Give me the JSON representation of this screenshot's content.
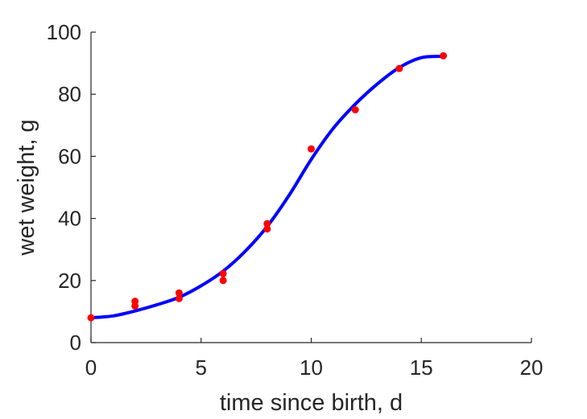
{
  "chart_data": {
    "type": "scatter",
    "title": "",
    "xlabel": "time since birth, d",
    "ylabel": "wet weight, g",
    "xlim": [
      0,
      20
    ],
    "ylim": [
      0,
      100
    ],
    "xticks": [
      0,
      5,
      10,
      15,
      20
    ],
    "yticks": [
      0,
      20,
      40,
      60,
      80,
      100
    ],
    "grid": false,
    "legend": "none",
    "series": [
      {
        "kind": "points",
        "color": "#ff0000",
        "points": [
          [
            0,
            8.0
          ],
          [
            2,
            13.3
          ],
          [
            2,
            11.8
          ],
          [
            4,
            16.0
          ],
          [
            4,
            14.2
          ],
          [
            6,
            22.2
          ],
          [
            6,
            20.0
          ],
          [
            8,
            38.3
          ],
          [
            8,
            36.6
          ],
          [
            10,
            62.4
          ],
          [
            12,
            75.0
          ],
          [
            14,
            88.3
          ],
          [
            16,
            92.4
          ]
        ]
      },
      {
        "kind": "fitted-curve",
        "color": "#0000ff",
        "x": [
          0,
          1,
          2,
          3,
          4,
          5,
          6,
          7,
          8,
          9,
          10,
          11,
          12,
          13,
          14,
          15,
          16
        ],
        "y": [
          8.0,
          8.6,
          10.2,
          12.2,
          14.6,
          18.3,
          23.0,
          29.4,
          37.4,
          47.5,
          59.0,
          69.0,
          76.8,
          83.3,
          88.6,
          91.8,
          92.2
        ]
      }
    ]
  }
}
